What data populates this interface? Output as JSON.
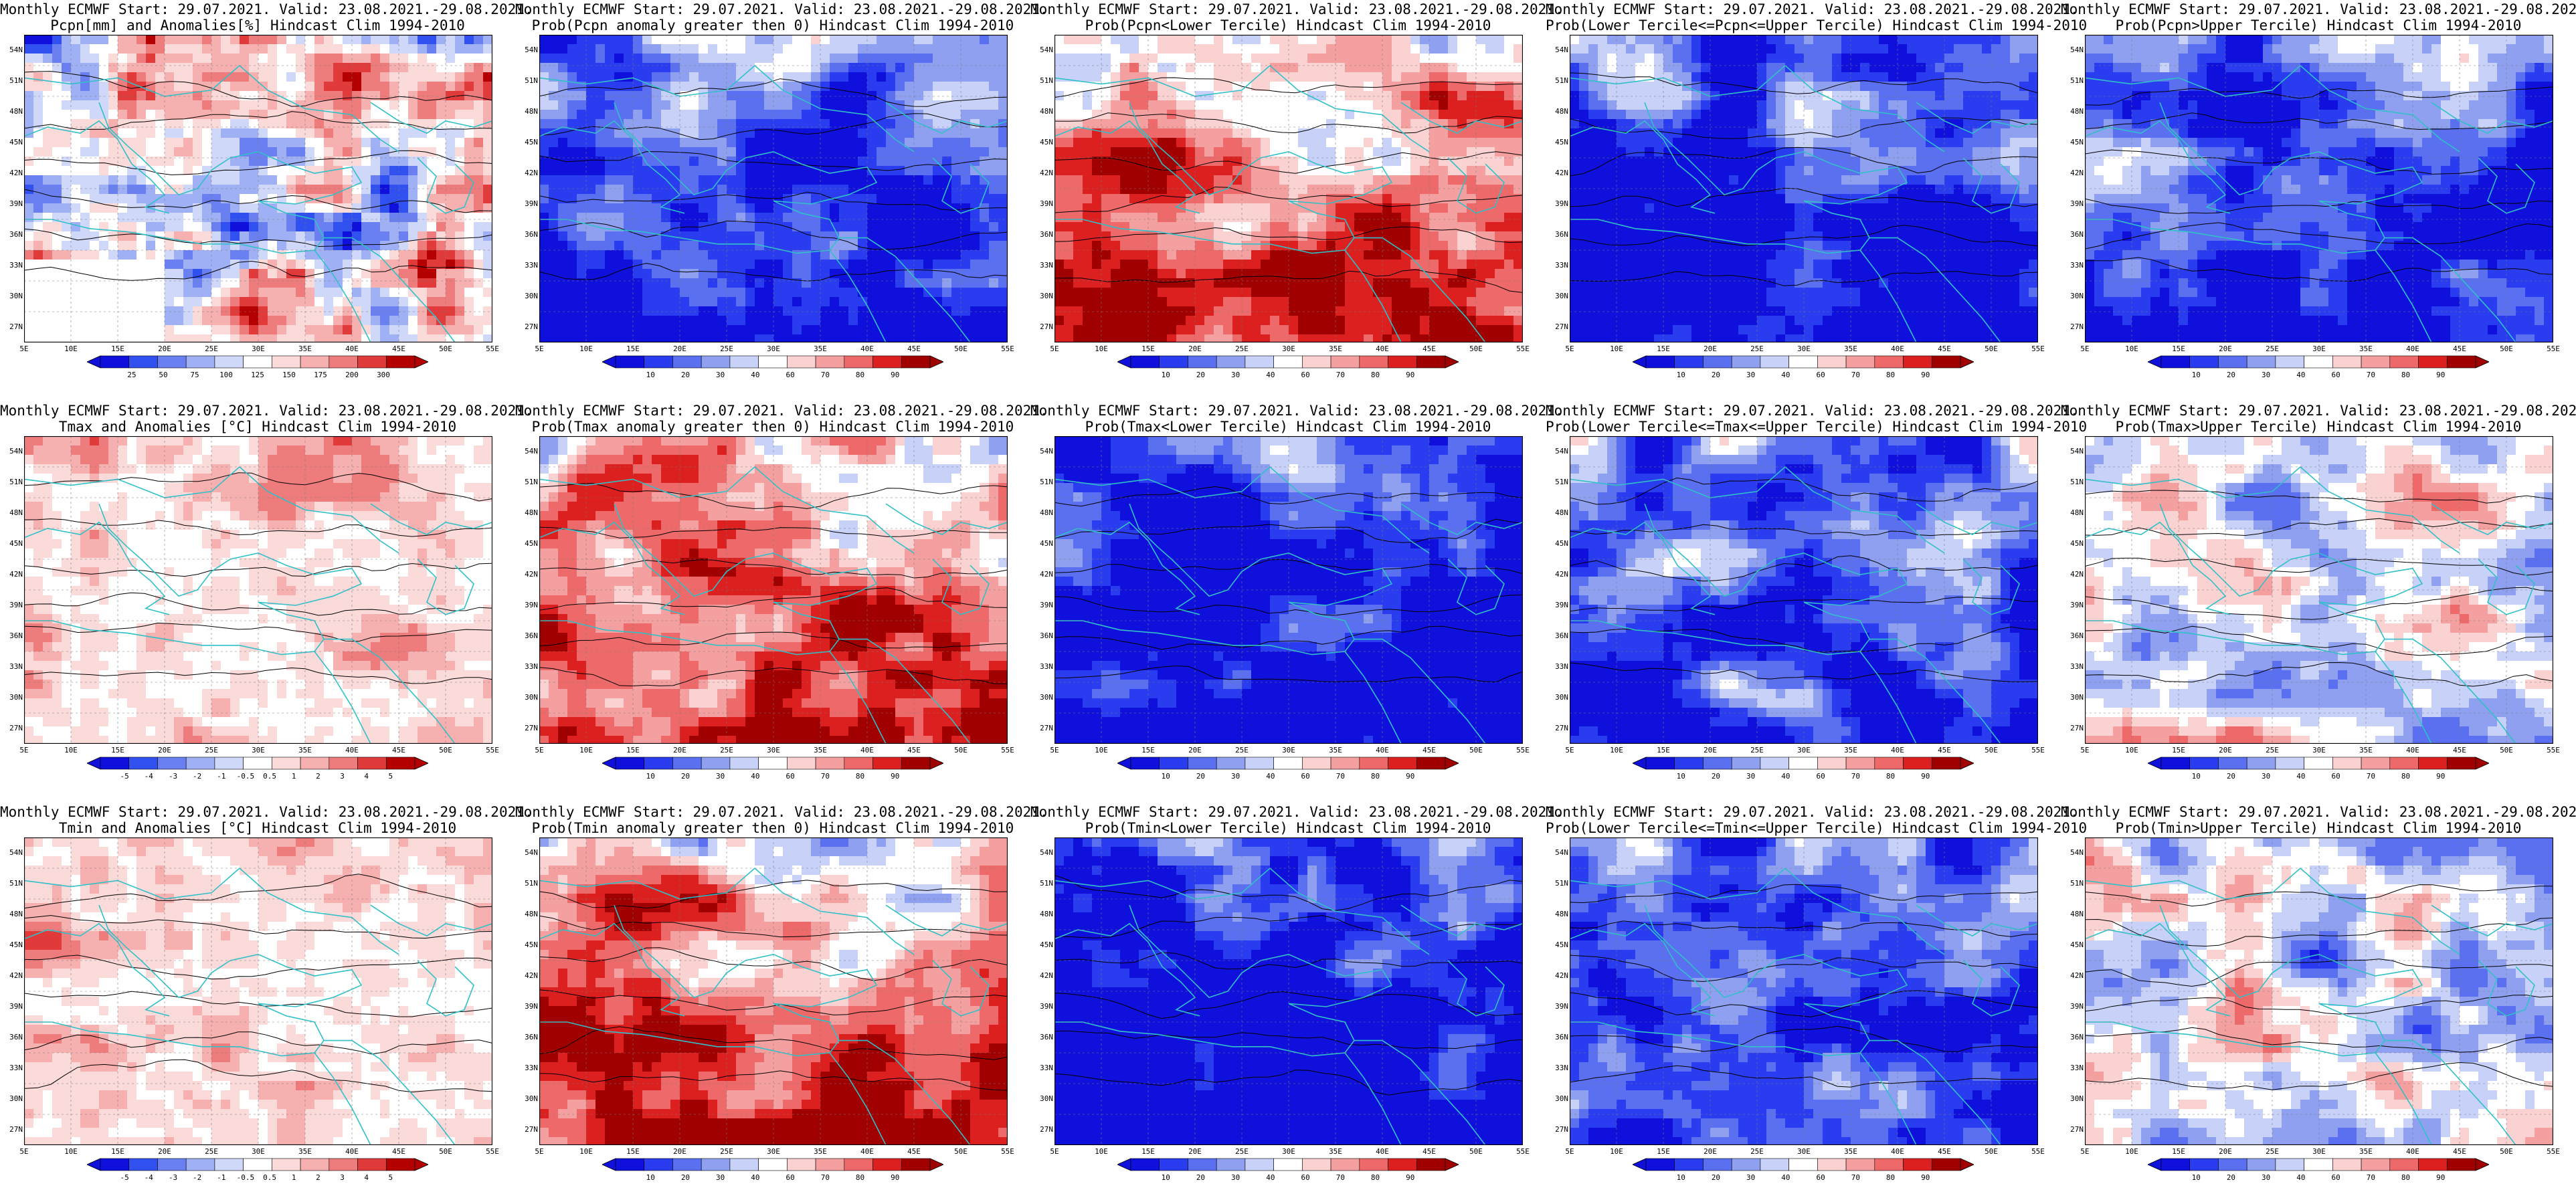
{
  "title_prefix": "Monthly ECMWF Start: 29.07.2021. Valid: 23.08.2021.-29.08.2021.",
  "lat_labels": [
    "54N",
    "51N",
    "48N",
    "45N",
    "42N",
    "39N",
    "36N",
    "33N",
    "30N",
    "27N"
  ],
  "lon_labels": [
    "5E",
    "10E",
    "15E",
    "20E",
    "25E",
    "30E",
    "35E",
    "40E",
    "45E",
    "50E",
    "55E"
  ],
  "colors": {
    "prob_scale": [
      "#1010dc",
      "#2a3cf0",
      "#5a70f0",
      "#8fa0f0",
      "#c8d2f8",
      "#ffffff",
      "#fbd2d2",
      "#f5a0a0",
      "#ee6a6a",
      "#dc2020",
      "#a00000"
    ],
    "anom_scale": [
      "#1010dc",
      "#3050f0",
      "#6a80f0",
      "#a0b0f4",
      "#d0d8fa",
      "#ffffff",
      "#fbdada",
      "#f6b0b0",
      "#ef7c7c",
      "#e03a3a",
      "#b40000"
    ],
    "coast": "#30c0c8",
    "contour": "#000000"
  },
  "rows": [
    {
      "panels": [
        {
          "title": "Pcpn[mm] and Anomalies[%] Hindcast Clim 1994-2010",
          "kind": "pcpn",
          "mean_value": 0.1,
          "colorbar": {
            "labels": [
              "25",
              "50",
              "75",
              "100",
              "125",
              "150",
              "175",
              "200",
              "300"
            ],
            "scale": "anom_scale"
          }
        },
        {
          "title": "Prob(Pcpn anomaly greater then 0) Hindcast Clim 1994-2010",
          "kind": "prob",
          "mean_value": 0.2,
          "colorbar": {
            "labels": [
              "10",
              "20",
              "30",
              "40",
              "60",
              "70",
              "80",
              "90"
            ],
            "scale": "prob_scale"
          }
        },
        {
          "title": "Prob(Pcpn<Lower Tercile) Hindcast Clim 1994-2010",
          "kind": "prob",
          "mean_value": 0.72,
          "colorbar": {
            "labels": [
              "10",
              "20",
              "30",
              "40",
              "60",
              "70",
              "80",
              "90"
            ],
            "scale": "prob_scale"
          }
        },
        {
          "title": "Prob(Lower Tercile<=Pcpn<=Upper Tercile) Hindcast Clim 1994-2010",
          "kind": "prob",
          "mean_value": 0.12,
          "colorbar": {
            "labels": [
              "10",
              "20",
              "30",
              "40",
              "60",
              "70",
              "80",
              "90"
            ],
            "scale": "prob_scale"
          }
        },
        {
          "title": "Prob(Pcpn>Upper Tercile) Hindcast Clim 1994-2010",
          "kind": "prob",
          "mean_value": 0.18,
          "colorbar": {
            "labels": [
              "10",
              "20",
              "30",
              "40",
              "60",
              "70",
              "80",
              "90"
            ],
            "scale": "prob_scale"
          }
        }
      ]
    },
    {
      "panels": [
        {
          "title": "Tmax and Anomalies [°C] Hindcast Clim 1994-2010",
          "kind": "anom",
          "mean_value": 0.58,
          "colorbar": {
            "labels": [
              "-5",
              "-4",
              "-3",
              "-2",
              "-1",
              "-0.5",
              "0.5",
              "1",
              "2",
              "3",
              "4",
              "5"
            ],
            "scale": "anom_scale"
          }
        },
        {
          "title": "Prob(Tmax anomaly greater then 0) Hindcast Clim 1994-2010",
          "kind": "prob",
          "mean_value": 0.72,
          "colorbar": {
            "labels": [
              "10",
              "20",
              "30",
              "40",
              "60",
              "70",
              "80",
              "90"
            ],
            "scale": "prob_scale"
          }
        },
        {
          "title": "Prob(Tmax<Lower Tercile) Hindcast Clim 1994-2010",
          "kind": "prob",
          "mean_value": 0.08,
          "colorbar": {
            "labels": [
              "10",
              "20",
              "30",
              "40",
              "60",
              "70",
              "80",
              "90"
            ],
            "scale": "prob_scale"
          }
        },
        {
          "title": "Prob(Lower Tercile<=Tmax<=Upper Tercile) Hindcast Clim 1994-2010",
          "kind": "prob",
          "mean_value": 0.22,
          "colorbar": {
            "labels": [
              "10",
              "20",
              "30",
              "40",
              "60",
              "70",
              "80",
              "90"
            ],
            "scale": "prob_scale"
          }
        },
        {
          "title": "Prob(Tmax>Upper Tercile) Hindcast Clim 1994-2010",
          "kind": "prob",
          "mean_value": 0.45,
          "colorbar": {
            "labels": [
              "10",
              "20",
              "30",
              "40",
              "60",
              "70",
              "80",
              "90"
            ],
            "scale": "prob_scale"
          }
        }
      ]
    },
    {
      "panels": [
        {
          "title": "Tmin and Anomalies [°C] Hindcast Clim 1994-2010",
          "kind": "anom",
          "mean_value": 0.58,
          "colorbar": {
            "labels": [
              "-5",
              "-4",
              "-3",
              "-2",
              "-1",
              "-0.5",
              "0.5",
              "1",
              "2",
              "3",
              "4",
              "5"
            ],
            "scale": "anom_scale"
          }
        },
        {
          "title": "Prob(Tmin anomaly greater then 0) Hindcast Clim 1994-2010",
          "kind": "prob",
          "mean_value": 0.75,
          "colorbar": {
            "labels": [
              "10",
              "20",
              "30",
              "40",
              "60",
              "70",
              "80",
              "90"
            ],
            "scale": "prob_scale"
          }
        },
        {
          "title": "Prob(Tmin<Lower Tercile) Hindcast Clim 1994-2010",
          "kind": "prob",
          "mean_value": 0.06,
          "colorbar": {
            "labels": [
              "10",
              "20",
              "30",
              "40",
              "60",
              "70",
              "80",
              "90"
            ],
            "scale": "prob_scale"
          }
        },
        {
          "title": "Prob(Lower Tercile<=Tmin<=Upper Tercile) Hindcast Clim 1994-2010",
          "kind": "prob",
          "mean_value": 0.22,
          "colorbar": {
            "labels": [
              "10",
              "20",
              "30",
              "40",
              "60",
              "70",
              "80",
              "90"
            ],
            "scale": "prob_scale"
          }
        },
        {
          "title": "Prob(Tmin>Upper Tercile) Hindcast Clim 1994-2010",
          "kind": "prob",
          "mean_value": 0.45,
          "colorbar": {
            "labels": [
              "10",
              "20",
              "30",
              "40",
              "60",
              "70",
              "80",
              "90"
            ],
            "scale": "prob_scale"
          }
        }
      ]
    }
  ]
}
